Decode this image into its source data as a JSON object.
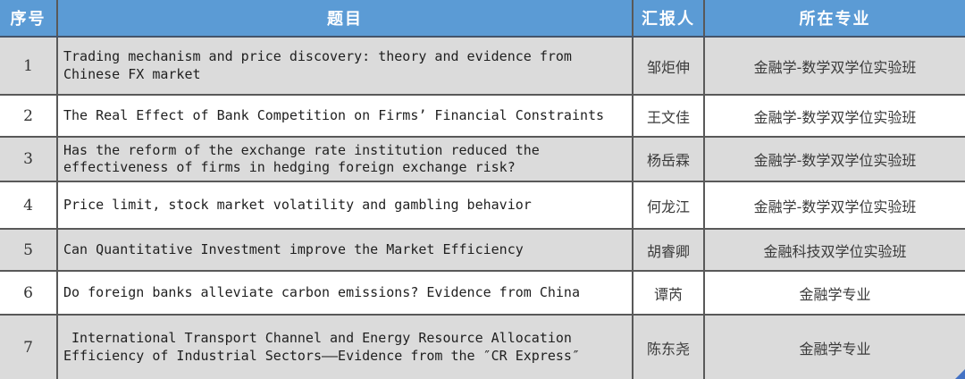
{
  "table": {
    "columns": [
      {
        "key": "index",
        "label": "序号"
      },
      {
        "key": "title",
        "label": "题目"
      },
      {
        "key": "presenter",
        "label": "汇报人"
      },
      {
        "key": "major",
        "label": "所在专业"
      }
    ],
    "rows": [
      {
        "index": "1",
        "title": "Trading mechanism and price discovery: theory and evidence from\nChinese FX market",
        "presenter": "邹炬伸",
        "major": "金融学-数学双学位实验班"
      },
      {
        "index": "2",
        "title": "The Real Effect of Bank Competition on Firms’ Financial Constraints",
        "presenter": "王文佳",
        "major": "金融学-数学双学位实验班"
      },
      {
        "index": "3",
        "title": "Has the reform of the exchange rate institution reduced the\neffectiveness of firms in hedging foreign exchange risk?",
        "presenter": "杨岳霖",
        "major": "金融学-数学双学位实验班"
      },
      {
        "index": "4",
        "title": "Price limit, stock market volatility and gambling behavior",
        "presenter": "何龙江",
        "major": "金融学-数学双学位实验班"
      },
      {
        "index": "5",
        "title": "Can Quantitative Investment improve the Market Efficiency",
        "presenter": "胡睿卿",
        "major": "金融科技双学位实验班"
      },
      {
        "index": "6",
        "title": "Do foreign banks alleviate carbon emissions? Evidence from China",
        "presenter": "谭芮",
        "major": "金融学专业"
      },
      {
        "index": "7",
        "title": " International Transport Channel and Energy Resource Allocation\nEfficiency of Industrial Sectors——Evidence from the ″CR Express″",
        "presenter": "陈东尧",
        "major": "金融学专业"
      }
    ]
  },
  "colors": {
    "header_bg": "#5B9BD5",
    "header_text": "#FFFFFF",
    "row_alt_bg": "#DBDBDB",
    "row_bg": "#FFFFFF",
    "border": "#595959",
    "header_border_bottom": "#44546A",
    "corner_accent": "#4472C4"
  }
}
